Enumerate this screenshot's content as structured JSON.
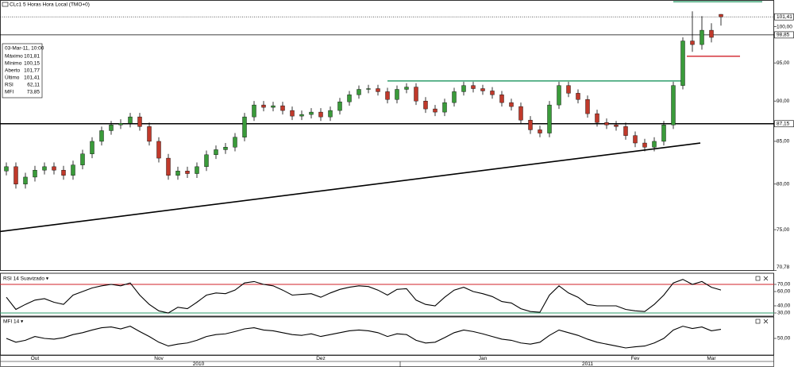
{
  "chart_data": [
    {
      "type": "candlestick",
      "title": "CLc1 5 Horas Hora Local (TMO+0)",
      "log_scale": true,
      "up_color": "#3a9b3a",
      "down_color": "#c0392b",
      "categories": [
        null,
        null,
        null,
        "Out",
        null,
        null,
        null,
        null,
        null,
        null,
        null,
        null,
        null,
        null,
        null,
        null,
        "Nov",
        null,
        null,
        null,
        null,
        null,
        null,
        null,
        null,
        null,
        null,
        null,
        null,
        null,
        null,
        null,
        null,
        "Dez",
        null,
        null,
        null,
        null,
        null,
        null,
        null,
        null,
        null,
        null,
        null,
        null,
        null,
        null,
        null,
        null,
        "Jan",
        null,
        null,
        null,
        null,
        null,
        null,
        null,
        null,
        null,
        null,
        null,
        null,
        null,
        null,
        null,
        "Fev",
        null,
        null,
        null,
        null,
        null,
        null,
        null,
        "Mar",
        null
      ],
      "years": [
        "2010",
        "2011"
      ],
      "open": [
        81.5,
        82,
        80,
        80.8,
        81.6,
        82,
        81.6,
        81,
        82.2,
        83.5,
        85,
        86.3,
        87,
        87.2,
        88,
        86.8,
        85,
        83,
        81,
        81.5,
        81.2,
        82,
        83.4,
        84,
        84.3,
        85.5,
        88,
        89.5,
        89.2,
        89.4,
        88.8,
        88.1,
        88.3,
        88.6,
        88,
        88.8,
        89.9,
        90.8,
        91.5,
        91.6,
        91.2,
        90.2,
        91.5,
        91.8,
        90,
        89,
        88.6,
        89.8,
        91.2,
        92,
        91.6,
        91.3,
        90.8,
        89.8,
        89.3,
        87.6,
        86.4,
        86,
        89.5,
        92,
        91,
        90.2,
        88.4,
        87.3,
        87,
        86.8,
        85.7,
        84.8,
        84.3,
        85,
        87,
        92,
        98,
        97.5,
        99.5,
        101.77
      ],
      "high": [
        82.5,
        82.5,
        81.3,
        82.1,
        82.5,
        82.5,
        82.1,
        82.7,
        84,
        85.5,
        86.8,
        87.5,
        87.7,
        88.5,
        88.5,
        87.3,
        85.5,
        83.5,
        82,
        82,
        82.5,
        83.9,
        84.5,
        84.8,
        86,
        88.5,
        90,
        90,
        89.9,
        89.9,
        89.3,
        88.8,
        89.1,
        89.1,
        89.3,
        90.4,
        91.3,
        92,
        92.1,
        92.1,
        91.7,
        92,
        92.3,
        92.3,
        90.5,
        89.5,
        90.3,
        91.7,
        92.5,
        92.5,
        92.1,
        91.8,
        91.3,
        90.3,
        89.8,
        88.1,
        86.9,
        90,
        92.5,
        92.5,
        91.5,
        90.7,
        88.9,
        87.8,
        87.5,
        87.3,
        86.2,
        85.3,
        85.5,
        87.5,
        92.5,
        98.5,
        102.2,
        101.5,
        100.5,
        101.81
      ],
      "low": [
        81,
        79.5,
        79.5,
        80.3,
        81.1,
        81.1,
        80.5,
        80.5,
        81.7,
        83,
        84.5,
        85.8,
        86.5,
        86.7,
        86.3,
        84.5,
        82.5,
        80.5,
        80.5,
        80.7,
        80.7,
        81.5,
        82.9,
        83.5,
        83.8,
        85,
        87.5,
        88.7,
        88.7,
        88.3,
        87.6,
        87.6,
        87.8,
        87.5,
        87.5,
        88.3,
        89.4,
        90.3,
        91,
        90.7,
        89.7,
        89.7,
        91,
        89.5,
        88.5,
        88.1,
        88.1,
        89.3,
        90.7,
        91.1,
        90.8,
        90.3,
        89.3,
        88.8,
        87.1,
        85.9,
        85.5,
        85.5,
        89,
        90.5,
        89.7,
        87.9,
        86.8,
        86.5,
        86.3,
        85.2,
        84.3,
        83.8,
        83.8,
        84.5,
        86.5,
        91.5,
        96.5,
        96.8,
        97.8,
        100.15
      ],
      "close": [
        82,
        80,
        80.8,
        81.6,
        82,
        81.6,
        81,
        82.2,
        83.5,
        85,
        86.3,
        87,
        87.2,
        88,
        86.8,
        85,
        83,
        81,
        81.5,
        81.2,
        82,
        83.4,
        84,
        84.3,
        85.5,
        88,
        89.5,
        89.2,
        89.4,
        88.8,
        88.1,
        88.3,
        88.6,
        88,
        88.8,
        89.9,
        90.8,
        91.5,
        91.6,
        91.2,
        90.2,
        91.5,
        91.8,
        90,
        89,
        88.6,
        89.8,
        91.2,
        92,
        91.6,
        91.3,
        90.8,
        89.8,
        89.3,
        87.6,
        86.4,
        86,
        89.5,
        92,
        91,
        90.2,
        88.4,
        87.3,
        87,
        86.8,
        85.7,
        84.8,
        84.3,
        85,
        87,
        92,
        98,
        97.5,
        99.5,
        98.5,
        101.41
      ],
      "ylim": [
        70.78,
        103.8
      ],
      "yticks": [
        {
          "value": 100,
          "label": "100,00"
        },
        {
          "value": 95,
          "label": "95,00"
        },
        {
          "value": 90,
          "label": "90,00"
        },
        {
          "value": 85,
          "label": "85,00"
        },
        {
          "value": 80,
          "label": "80,00"
        },
        {
          "value": 75,
          "label": "75,00"
        },
        {
          "value": 70.78,
          "label": "70,78"
        }
      ],
      "lines": [
        {
          "value": 101.41,
          "label": "101,41",
          "color": "#000000",
          "style": "dotted"
        },
        {
          "value": 98.85,
          "label": "98,85",
          "color": "#000000",
          "style": "solid"
        },
        {
          "value": 87.15,
          "label": "87,15",
          "color": "#000000",
          "style": "thick"
        },
        {
          "value": 92.6,
          "color": "#2e9e6b",
          "style": "thick"
        },
        {
          "value": 103.6,
          "color": "#2e9e6b",
          "style": "thick"
        },
        {
          "value": 95.9,
          "color": "#d0202a",
          "style": "thick"
        }
      ],
      "trendline": [
        74.8,
        84.8
      ],
      "info": {
        "date": "03-Mar-11, 10:00",
        "rows": [
          [
            "Máximo",
            "101,81"
          ],
          [
            "Mínimo",
            "100,15"
          ],
          [
            "Aberto",
            "101,77"
          ],
          [
            "Último",
            "101,41"
          ],
          [
            "RSI",
            "62,11"
          ],
          [
            "MFI",
            "73,85"
          ]
        ]
      }
    },
    {
      "type": "line",
      "title": "RSI 14 Suavizado ▾",
      "color": "#000000",
      "values": [
        52,
        35,
        42,
        48,
        50,
        45,
        42,
        55,
        60,
        65,
        68,
        70,
        68,
        72,
        55,
        42,
        33,
        30,
        38,
        36,
        45,
        55,
        58,
        57,
        62,
        72,
        74,
        70,
        68,
        62,
        55,
        56,
        57,
        52,
        58,
        63,
        66,
        68,
        67,
        62,
        55,
        63,
        64,
        48,
        42,
        40,
        52,
        62,
        66,
        60,
        57,
        53,
        46,
        44,
        36,
        32,
        31,
        55,
        68,
        58,
        52,
        42,
        40,
        40,
        40,
        35,
        33,
        32,
        42,
        55,
        72,
        77,
        70,
        74,
        66,
        62.11
      ],
      "ylim": [
        25,
        80
      ],
      "yticks": [
        {
          "value": 70,
          "label": "70,00"
        },
        {
          "value": 60,
          "label": "60,00"
        },
        {
          "value": 40,
          "label": "40,00"
        },
        {
          "value": 30,
          "label": "30,00"
        }
      ],
      "levels": [
        {
          "value": 70,
          "color": "#d0202a"
        },
        {
          "value": 30,
          "color": "#2e9e6b"
        }
      ]
    },
    {
      "type": "line",
      "title": "MFI 14 ▾",
      "color": "#000000",
      "values": [
        50,
        40,
        45,
        55,
        50,
        48,
        52,
        60,
        65,
        72,
        78,
        80,
        75,
        82,
        68,
        55,
        40,
        30,
        35,
        38,
        45,
        55,
        60,
        62,
        68,
        75,
        78,
        72,
        70,
        65,
        60,
        58,
        62,
        55,
        60,
        65,
        70,
        72,
        70,
        65,
        55,
        62,
        60,
        45,
        38,
        40,
        52,
        65,
        72,
        68,
        62,
        55,
        48,
        45,
        38,
        35,
        40,
        58,
        72,
        65,
        58,
        48,
        40,
        35,
        30,
        25,
        28,
        30,
        38,
        50,
        72,
        82,
        76,
        80,
        70,
        73.85
      ],
      "ylim": [
        0,
        100
      ],
      "yticks": [
        {
          "value": 50,
          "label": "50,00"
        }
      ]
    }
  ]
}
